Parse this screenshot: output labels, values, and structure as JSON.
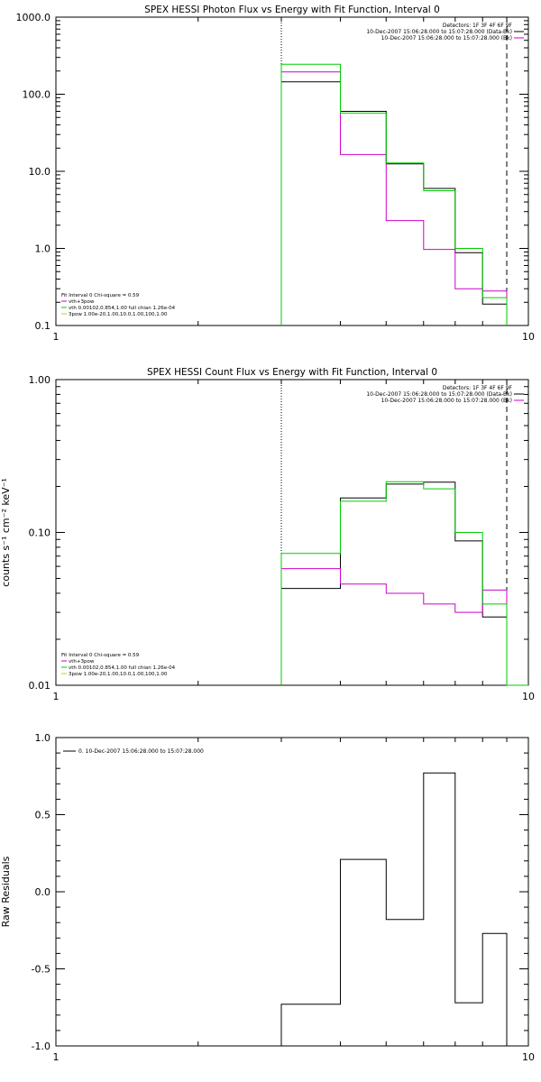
{
  "chart_data": [
    {
      "type": "line",
      "title": "SPEX HESSI Photon Flux vs Energy with Fit Function, Interval 0",
      "xlabel": "",
      "ylabel": "",
      "xscale": "log",
      "yscale": "log",
      "xlim": [
        1,
        10
      ],
      "ylim": [
        0.1,
        1000
      ],
      "x_ticks": [
        {
          "value": 1,
          "label": "1"
        },
        {
          "value": 10,
          "label": "10"
        }
      ],
      "y_ticks": [
        {
          "value": 0.1,
          "label": "0.1"
        },
        {
          "value": 1,
          "label": "1.0"
        },
        {
          "value": 10,
          "label": "10.0"
        },
        {
          "value": 100,
          "label": "100.0"
        },
        {
          "value": 1000,
          "label": "1000.0"
        }
      ],
      "vlines": [
        {
          "x": 3.0,
          "style": "dotted"
        },
        {
          "x": 9.0,
          "style": "dashed"
        }
      ],
      "bin_edges": [
        3.0,
        4.0,
        5.0,
        6.0,
        7.0,
        8.0,
        9.0
      ],
      "series": [
        {
          "color": "#000000",
          "values": [
            145,
            60,
            12.5,
            6.0,
            0.88,
            0.19
          ]
        },
        {
          "color": "#cc00cc",
          "values": [
            195,
            16.5,
            2.3,
            0.97,
            0.3,
            0.28
          ]
        },
        {
          "color": "#00cc00",
          "values": [
            245,
            57,
            12.8,
            5.6,
            1.0,
            0.23
          ]
        }
      ],
      "legend_upper": {
        "placement": "top-right",
        "lines": [
          {
            "text": "Detectors: 1F 3F 4F 6F 9F",
            "color": ""
          },
          {
            "text": "10-Dec-2007 15:06:28.000 to 15:07:28.000 (Data-Bk)",
            "color": "#000000"
          },
          {
            "text": "10-Dec-2007 15:06:28.000 to 15:07:28.000 (Bk)",
            "color": "#cc00cc"
          }
        ]
      },
      "legend_lower": {
        "placement": "bottom-left",
        "lines": [
          {
            "text": "Fit Interval 0   Chi-square = 0.59",
            "color": ""
          },
          {
            "text": "vth+3pow",
            "color": "#cc00cc"
          },
          {
            "text": "vth 0.00102,0.854,1.00  full chian 1.26e-04",
            "color": "#00cc00"
          },
          {
            "text": "3pow 1.00e-20,1.00,10.0,1.00,100,1.00",
            "color": "#cccc00"
          }
        ]
      }
    },
    {
      "type": "line",
      "title": "SPEX HESSI Count Flux vs Energy with Fit Function, Interval 0",
      "xlabel": "",
      "ylabel": "counts s⁻¹ cm⁻² keV⁻¹",
      "xscale": "log",
      "yscale": "log",
      "xlim": [
        1,
        10
      ],
      "ylim": [
        0.01,
        1.0
      ],
      "x_ticks": [
        {
          "value": 1,
          "label": "1"
        },
        {
          "value": 10,
          "label": "10"
        }
      ],
      "y_ticks": [
        {
          "value": 0.01,
          "label": "0.01"
        },
        {
          "value": 0.1,
          "label": "0.10"
        },
        {
          "value": 1.0,
          "label": "1.00"
        }
      ],
      "vlines": [
        {
          "x": 3.0,
          "style": "dotted"
        },
        {
          "x": 9.0,
          "style": "dashed"
        }
      ],
      "bin_edges": [
        3.0,
        4.0,
        5.0,
        6.0,
        7.0,
        8.0,
        9.0,
        10.0
      ],
      "series": [
        {
          "color": "#000000",
          "values": [
            0.043,
            0.168,
            0.207,
            0.213,
            0.088,
            0.028,
            0.0
          ]
        },
        {
          "color": "#cc00cc",
          "values": [
            0.058,
            0.046,
            0.04,
            0.034,
            0.03,
            0.042,
            0.0
          ]
        },
        {
          "color": "#00cc00",
          "values": [
            0.073,
            0.16,
            0.215,
            0.193,
            0.1,
            0.034,
            0.01
          ]
        }
      ],
      "legend_upper": {
        "placement": "top-right",
        "lines": [
          {
            "text": "Detectors: 1F 3F 4F 6F 9F",
            "color": ""
          },
          {
            "text": "10-Dec-2007 15:06:28.000 to 15:07:28.000 (Data-Bk)",
            "color": "#000000"
          },
          {
            "text": "10-Dec-2007 15:06:28.000 to 15:07:28.000 (Bk)",
            "color": "#cc00cc"
          }
        ]
      },
      "legend_lower": {
        "placement": "bottom-left",
        "lines": [
          {
            "text": "Fit Interval 0   Chi-square = 0.59",
            "color": ""
          },
          {
            "text": "vth+3pow",
            "color": "#cc00cc"
          },
          {
            "text": "vth 0.00102,0.854,1.00  full chian 1.26e-04",
            "color": "#00cc00"
          },
          {
            "text": "3pow 1.00e-20,1.00,10.0,1.00,100,1.00",
            "color": "#cccc00"
          }
        ]
      }
    },
    {
      "type": "line",
      "title": "",
      "xlabel": "",
      "ylabel": "Raw Residuals",
      "xscale": "log",
      "yscale": "linear",
      "xlim": [
        1,
        10
      ],
      "ylim": [
        -1.0,
        1.0
      ],
      "x_ticks": [
        {
          "value": 1,
          "label": "1"
        },
        {
          "value": 10,
          "label": "10"
        }
      ],
      "y_ticks": [
        {
          "value": -1.0,
          "label": "-1.0"
        },
        {
          "value": -0.5,
          "label": "-0.5"
        },
        {
          "value": 0.0,
          "label": "0.0"
        },
        {
          "value": 0.5,
          "label": "0.5"
        },
        {
          "value": 1.0,
          "label": "1.0"
        }
      ],
      "vlines": [],
      "bin_edges": [
        3.0,
        4.0,
        5.0,
        6.0,
        7.0,
        8.0,
        9.0
      ],
      "series": [
        {
          "color": "#000000",
          "values": [
            -0.73,
            0.21,
            -0.18,
            0.77,
            -0.72,
            -0.27
          ]
        }
      ],
      "legend_upper": {
        "placement": "top-left",
        "lines": [
          {
            "text": "0. 10-Dec-2007 15:06:28.000 to 15:07:28.000",
            "color": "#000000"
          }
        ]
      },
      "legend_lower": {
        "placement": "",
        "lines": []
      }
    }
  ]
}
